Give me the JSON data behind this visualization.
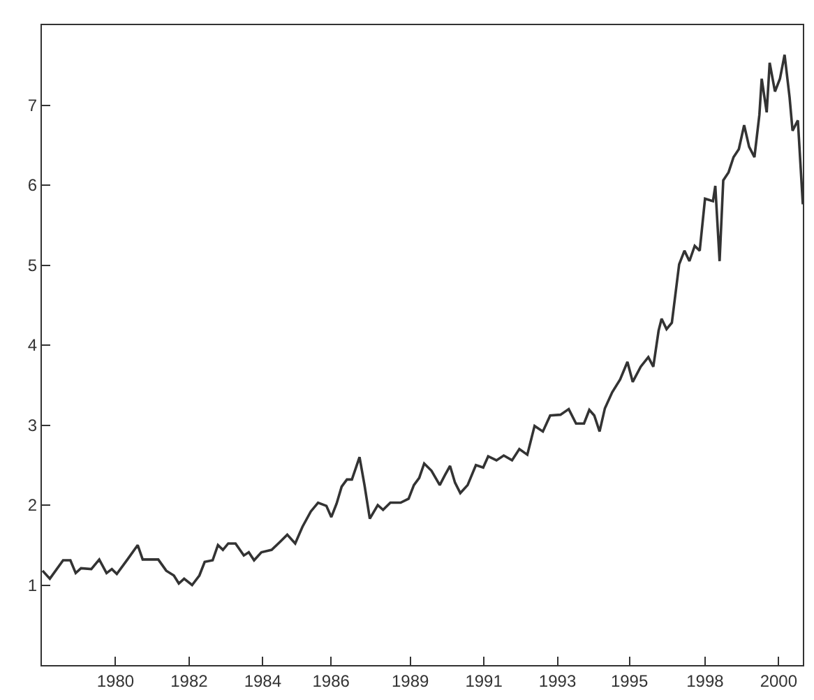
{
  "chart_data": {
    "type": "line",
    "marker": "none",
    "line_style": "solid",
    "xlim": [
      1977.78,
      2000.73
    ],
    "ylim": [
      0,
      8
    ],
    "xticks": [
      1980,
      {
        "value": 1982.22,
        "label": "1982"
      },
      {
        "value": 1984.44,
        "label": "1984"
      },
      {
        "value": 1986.5,
        "label": "1986"
      },
      {
        "value": 1988.89,
        "label": "1989"
      },
      {
        "value": 1991.11,
        "label": "1991"
      },
      {
        "value": 1993.33,
        "label": "1993"
      },
      {
        "value": 1995.5,
        "label": "1995"
      },
      {
        "value": 1997.78,
        "label": "1998"
      },
      2000
    ],
    "yticks": [
      1,
      2,
      3,
      4,
      5,
      6,
      7
    ],
    "series": [
      {
        "color": "#333333",
        "x": [
          1977.8,
          1978.02,
          1978.42,
          1978.64,
          1978.8,
          1978.96,
          1979.27,
          1979.51,
          1979.73,
          1979.89,
          1980.04,
          1980.36,
          1980.67,
          1980.82,
          1981.29,
          1981.53,
          1981.76,
          1981.91,
          1982.07,
          1982.31,
          1982.53,
          1982.69,
          1982.93,
          1983.09,
          1983.24,
          1983.4,
          1983.62,
          1983.87,
          1984.02,
          1984.18,
          1984.4,
          1984.71,
          1984.96,
          1985.18,
          1985.42,
          1985.64,
          1985.89,
          1986.11,
          1986.36,
          1986.51,
          1986.67,
          1986.82,
          1986.98,
          1987.13,
          1987.36,
          1987.51,
          1987.67,
          1987.91,
          1988.07,
          1988.29,
          1988.6,
          1988.84,
          1989.0,
          1989.16,
          1989.31,
          1989.53,
          1989.78,
          1989.93,
          1990.09,
          1990.24,
          1990.4,
          1990.62,
          1990.87,
          1991.09,
          1991.24,
          1991.49,
          1991.71,
          1991.96,
          1992.18,
          1992.42,
          1992.64,
          1992.89,
          1993.11,
          1993.42,
          1993.67,
          1993.89,
          1994.13,
          1994.29,
          1994.44,
          1994.6,
          1994.76,
          1994.98,
          1995.22,
          1995.44,
          1995.6,
          1995.84,
          1996.07,
          1996.22,
          1996.38,
          1996.47,
          1996.62,
          1996.78,
          1997.0,
          1997.16,
          1997.31,
          1997.47,
          1997.62,
          1997.78,
          1998.02,
          1998.09,
          1998.22,
          1998.33,
          1998.49,
          1998.64,
          1998.8,
          1998.96,
          1999.11,
          1999.27,
          1999.42,
          1999.49,
          1999.64,
          1999.73,
          1999.89,
          2000.04,
          2000.18,
          2000.33,
          2000.42,
          2000.58,
          2000.73
        ],
        "values": [
          1.18,
          1.08,
          1.31,
          1.31,
          1.15,
          1.21,
          1.2,
          1.32,
          1.15,
          1.2,
          1.14,
          1.32,
          1.5,
          1.32,
          1.32,
          1.18,
          1.12,
          1.02,
          1.08,
          1.0,
          1.12,
          1.29,
          1.31,
          1.5,
          1.44,
          1.52,
          1.52,
          1.37,
          1.41,
          1.31,
          1.41,
          1.44,
          1.54,
          1.63,
          1.52,
          1.73,
          1.92,
          2.03,
          1.99,
          1.85,
          2.02,
          2.23,
          2.32,
          2.32,
          2.6,
          2.25,
          1.83,
          2.0,
          1.94,
          2.03,
          2.03,
          2.08,
          2.25,
          2.34,
          2.52,
          2.43,
          2.25,
          2.37,
          2.49,
          2.28,
          2.15,
          2.25,
          2.5,
          2.47,
          2.61,
          2.56,
          2.62,
          2.56,
          2.7,
          2.63,
          2.99,
          2.92,
          3.12,
          3.13,
          3.2,
          3.02,
          3.02,
          3.19,
          3.12,
          2.92,
          3.21,
          3.41,
          3.57,
          3.79,
          3.54,
          3.73,
          3.85,
          3.73,
          4.18,
          4.33,
          4.2,
          4.28,
          5.01,
          5.18,
          5.05,
          5.24,
          5.18,
          5.83,
          5.8,
          5.99,
          5.05,
          6.06,
          6.16,
          6.35,
          6.45,
          6.75,
          6.48,
          6.35,
          6.88,
          7.33,
          6.91,
          7.53,
          7.17,
          7.33,
          7.63,
          7.1,
          6.68,
          6.81,
          5.76
        ]
      }
    ]
  }
}
